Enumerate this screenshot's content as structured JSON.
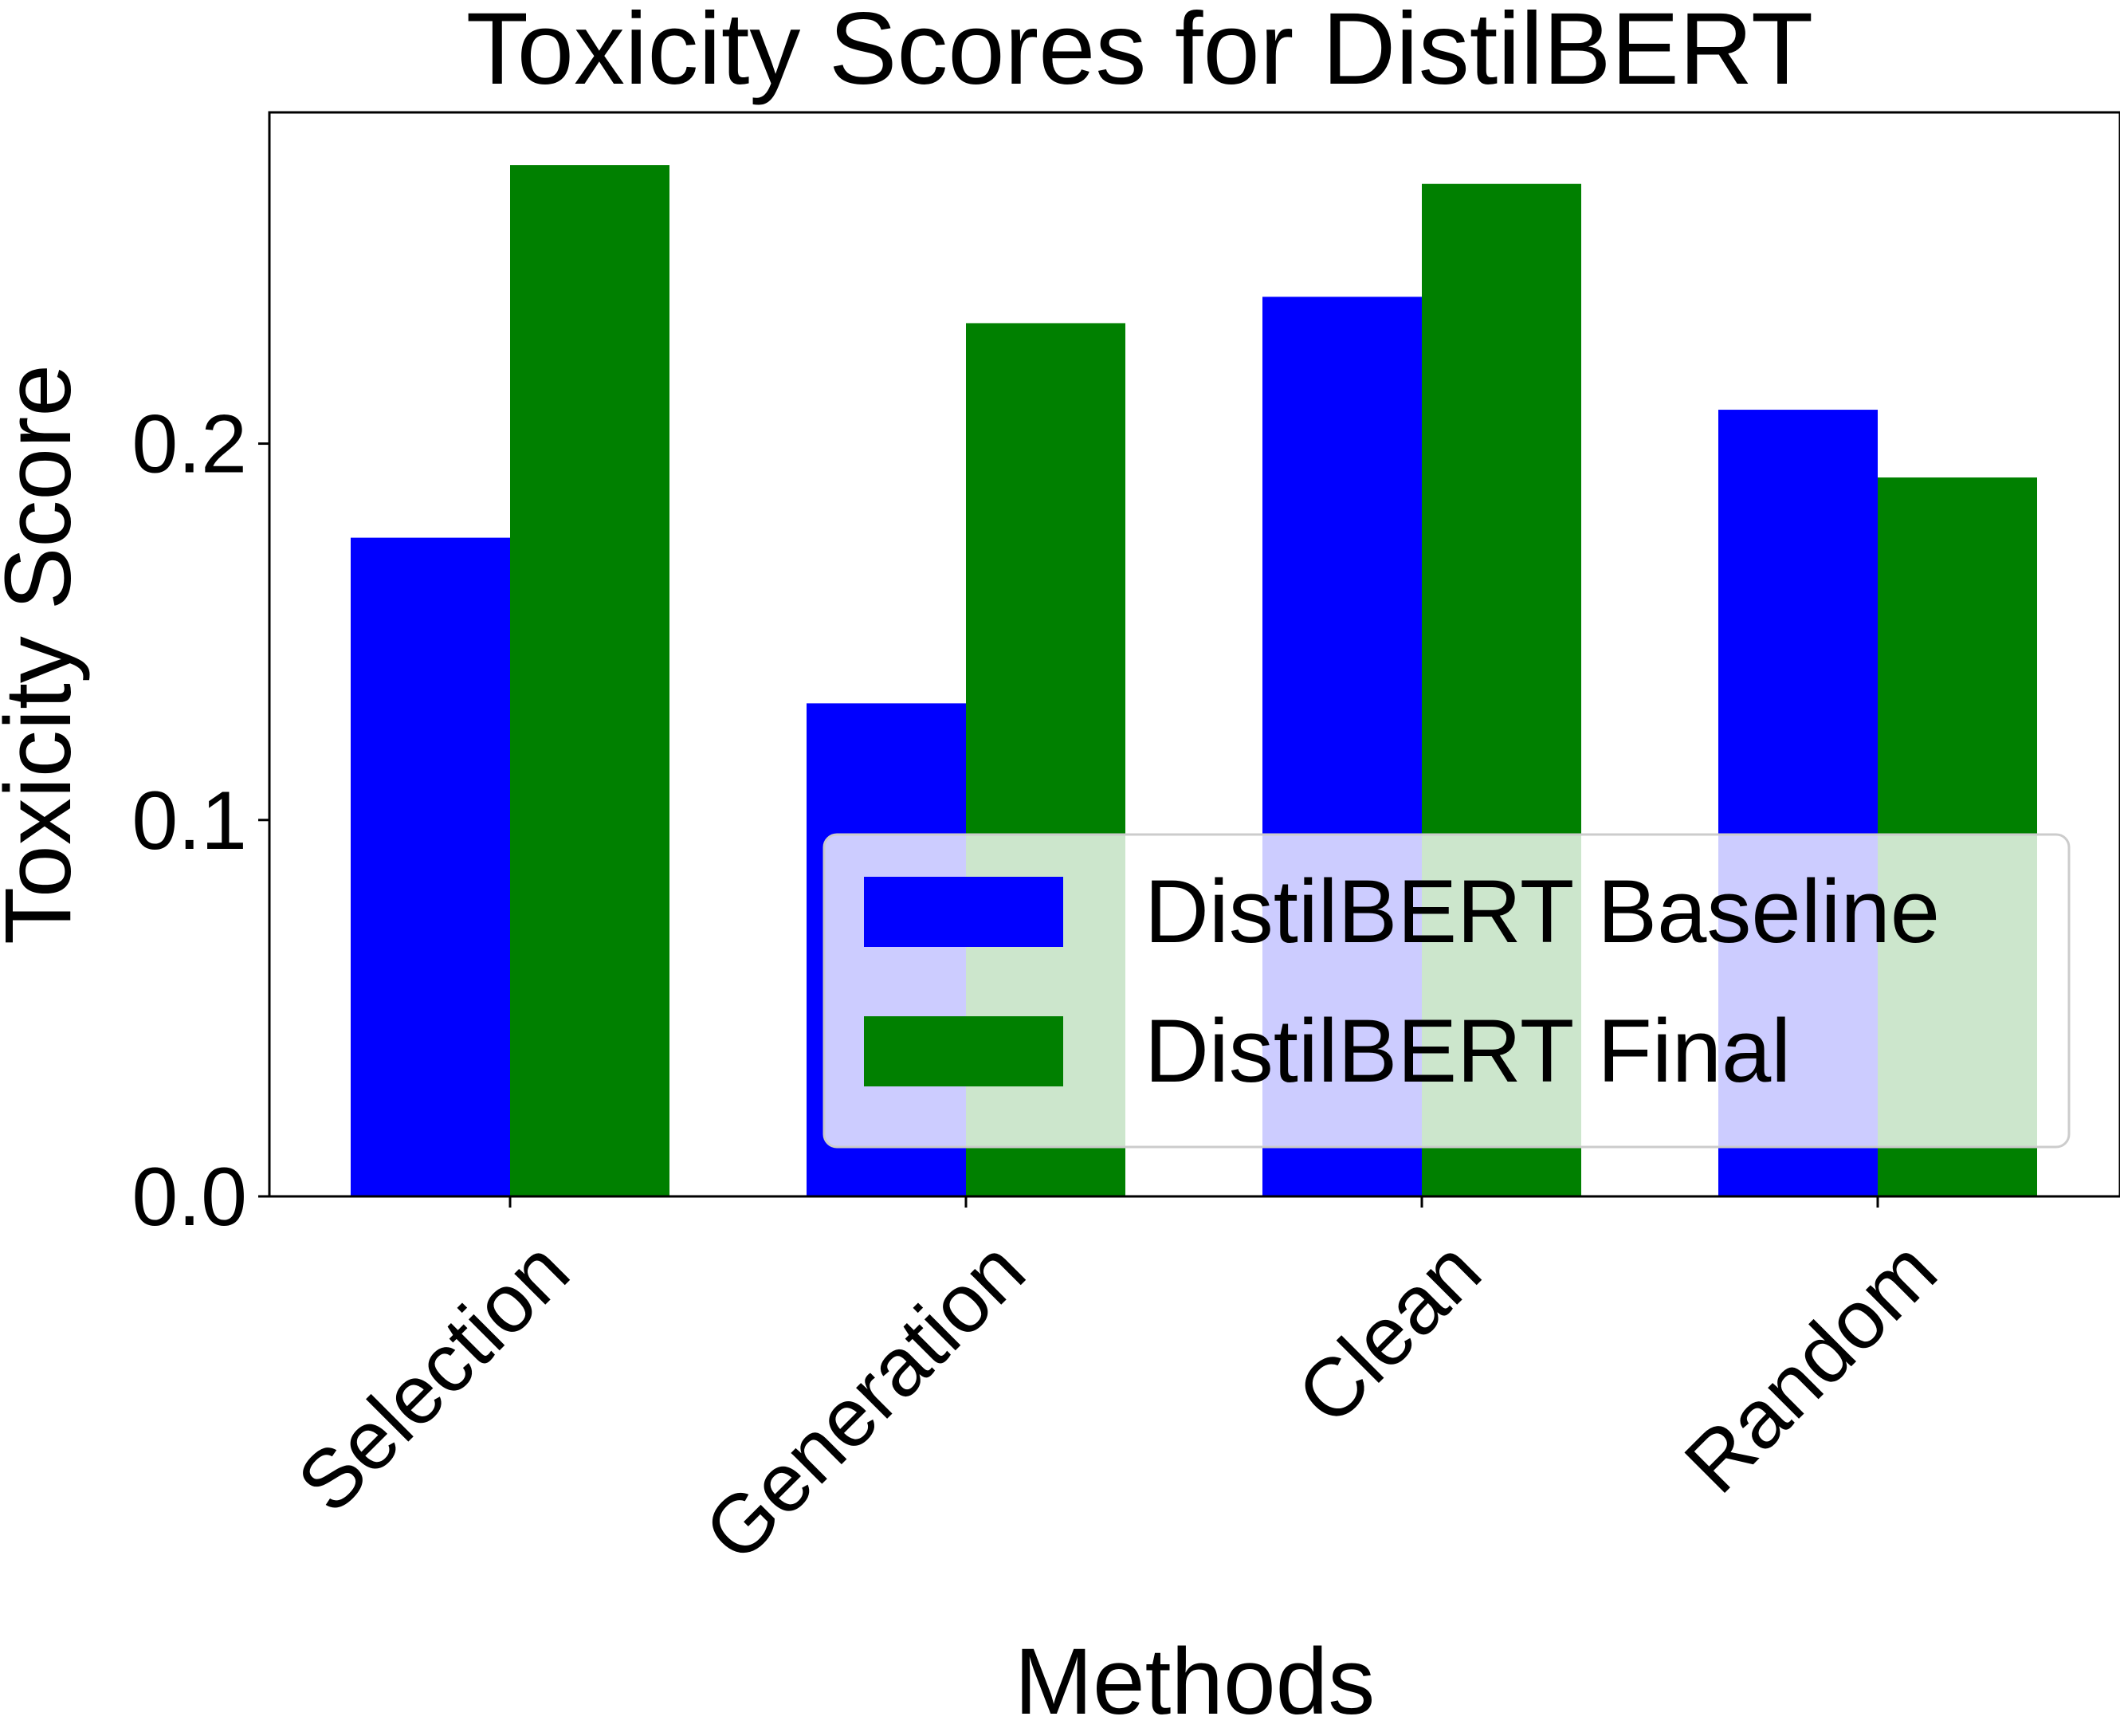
{
  "chart_data": {
    "type": "bar",
    "title": "Toxicity Scores for DistilBERT",
    "xlabel": "Methods",
    "ylabel": "Toxicity Score",
    "categories": [
      "Selection",
      "Generation",
      "Clean",
      "Random"
    ],
    "series": [
      {
        "name": "DistilBERT Baseline",
        "color": "#0000ff",
        "values": [
          0.175,
          0.131,
          0.239,
          0.209
        ]
      },
      {
        "name": "DistilBERT Final",
        "color": "#008000",
        "values": [
          0.274,
          0.232,
          0.269,
          0.191
        ]
      }
    ],
    "ylim": [
      0,
      0.288
    ],
    "yticks": [
      0.0,
      0.1,
      0.2
    ],
    "ytick_labels": [
      "0.0",
      "0.1",
      "0.2"
    ],
    "grid": false,
    "legend_position": "lower-right"
  }
}
